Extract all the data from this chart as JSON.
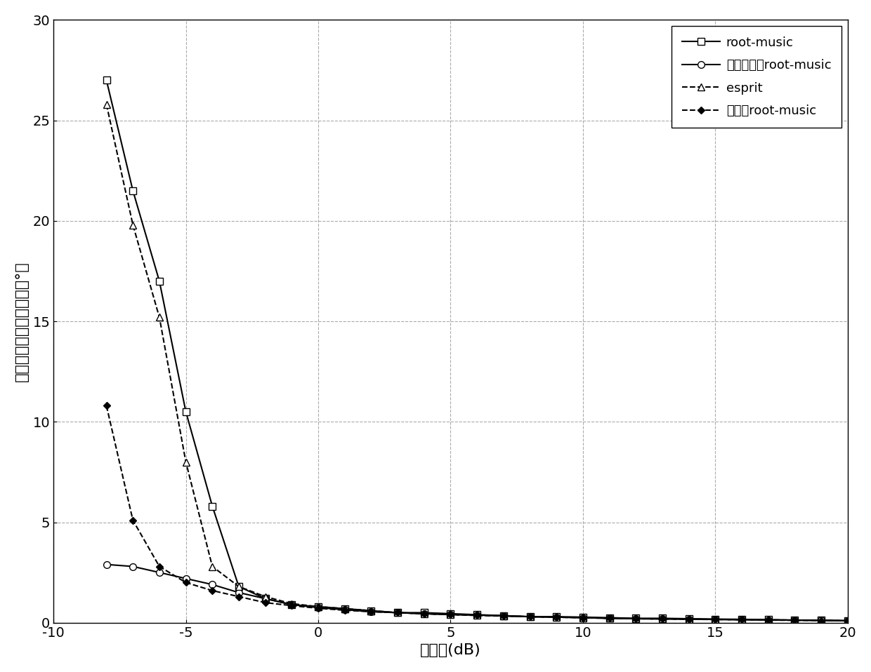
{
  "title": "",
  "xlabel": "信噪比(dB)",
  "ylabel": "波达方向最小均方误差（°）",
  "xlim": [
    -10,
    20
  ],
  "ylim": [
    0,
    30
  ],
  "xticks": [
    -10,
    -5,
    0,
    5,
    10,
    15,
    20
  ],
  "yticks": [
    0,
    5,
    10,
    15,
    20,
    25,
    30
  ],
  "background_color": "#ffffff",
  "series": [
    {
      "label": "root-music",
      "linestyle": "-",
      "linewidth": 1.5,
      "color": "#000000",
      "marker": "s",
      "markersize": 7,
      "markerfacecolor": "white",
      "markeredgecolor": "#000000",
      "x": [
        -8,
        -7,
        -6,
        -5,
        -4,
        -3,
        -2,
        -1,
        0,
        1,
        2,
        3,
        4,
        5,
        6,
        7,
        8,
        9,
        10,
        11,
        12,
        13,
        14,
        15,
        16,
        17,
        18,
        19,
        20
      ],
      "y": [
        27.0,
        21.5,
        17.0,
        10.5,
        5.8,
        1.8,
        1.2,
        0.9,
        0.8,
        0.7,
        0.6,
        0.5,
        0.5,
        0.45,
        0.4,
        0.35,
        0.3,
        0.3,
        0.28,
        0.25,
        0.22,
        0.22,
        0.2,
        0.18,
        0.17,
        0.15,
        0.13,
        0.12,
        0.1
      ]
    },
    {
      "label": "改进重采样root-music",
      "linestyle": "-",
      "linewidth": 1.5,
      "color": "#000000",
      "marker": "o",
      "markersize": 7,
      "markerfacecolor": "white",
      "markeredgecolor": "#000000",
      "x": [
        -8,
        -7,
        -6,
        -5,
        -4,
        -3,
        -2,
        -1,
        0,
        1,
        2,
        3,
        4,
        5,
        6,
        7,
        8,
        9,
        10,
        11,
        12,
        13,
        14,
        15,
        16,
        17,
        18,
        19,
        20
      ],
      "y": [
        2.9,
        2.8,
        2.5,
        2.2,
        1.9,
        1.5,
        1.2,
        0.9,
        0.75,
        0.65,
        0.55,
        0.5,
        0.45,
        0.42,
        0.38,
        0.35,
        0.3,
        0.28,
        0.25,
        0.22,
        0.2,
        0.19,
        0.18,
        0.17,
        0.15,
        0.14,
        0.13,
        0.12,
        0.1
      ]
    },
    {
      "label": "esprit",
      "linestyle": "--",
      "linewidth": 1.5,
      "color": "#000000",
      "marker": "^",
      "markersize": 7,
      "markerfacecolor": "white",
      "markeredgecolor": "#000000",
      "x": [
        -8,
        -7,
        -6,
        -5,
        -4,
        -3,
        -2,
        -1,
        0,
        1,
        2,
        3,
        4,
        5,
        6,
        7,
        8,
        9,
        10,
        11,
        12,
        13,
        14,
        15,
        16,
        17,
        18,
        19,
        20
      ],
      "y": [
        25.8,
        19.8,
        15.2,
        8.0,
        2.8,
        1.8,
        1.3,
        0.95,
        0.8,
        0.7,
        0.6,
        0.5,
        0.45,
        0.4,
        0.38,
        0.34,
        0.3,
        0.28,
        0.25,
        0.22,
        0.2,
        0.19,
        0.18,
        0.16,
        0.15,
        0.14,
        0.13,
        0.12,
        0.1
      ]
    },
    {
      "label": "重采样root-music",
      "linestyle": "--",
      "linewidth": 1.5,
      "color": "#000000",
      "marker": "D",
      "markersize": 5,
      "markerfacecolor": "#000000",
      "markeredgecolor": "#000000",
      "x": [
        -8,
        -7,
        -6,
        -5,
        -4,
        -3,
        -2,
        -1,
        0,
        1,
        2,
        3,
        4,
        5,
        6,
        7,
        8,
        9,
        10,
        11,
        12,
        13,
        14,
        15,
        16,
        17,
        18,
        19,
        20
      ],
      "y": [
        10.8,
        5.1,
        2.8,
        2.0,
        1.6,
        1.3,
        1.0,
        0.85,
        0.72,
        0.62,
        0.55,
        0.5,
        0.44,
        0.4,
        0.36,
        0.33,
        0.3,
        0.27,
        0.25,
        0.22,
        0.2,
        0.19,
        0.17,
        0.16,
        0.15,
        0.13,
        0.12,
        0.11,
        0.1
      ]
    }
  ],
  "legend_loc": "upper right",
  "legend_fontsize": 13,
  "axis_label_fontsize": 16,
  "tick_fontsize": 14
}
